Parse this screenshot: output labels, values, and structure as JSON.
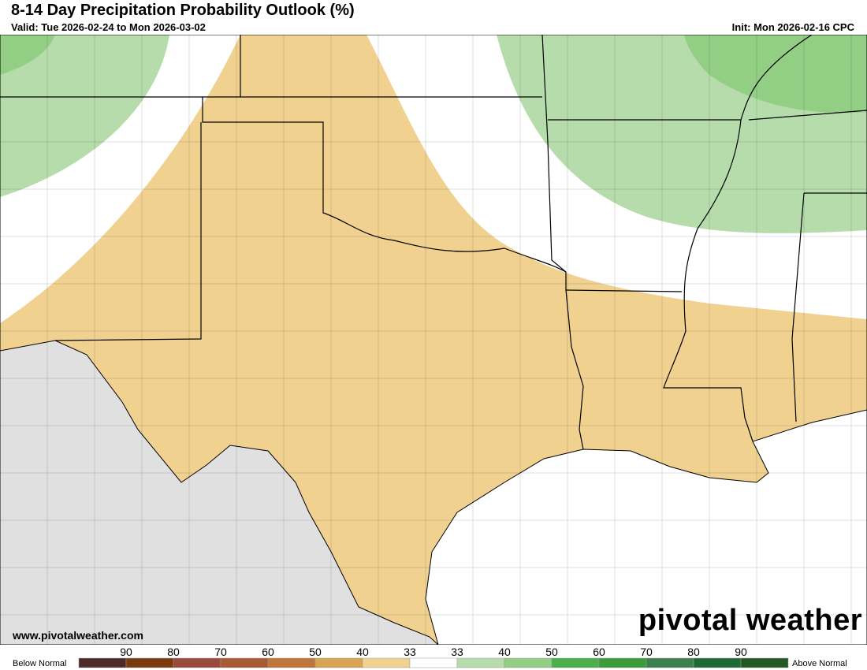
{
  "header": {
    "title": "8-14 Day Precipitation Probability Outlook (%)",
    "valid": "Valid: Tue 2026-02-24 to Mon 2026-03-02",
    "init": "Init: Mon 2026-02-16 CPC"
  },
  "footer": {
    "website": "www.pivotalweather.com",
    "logo": "pivotal weather"
  },
  "legend": {
    "below_label": "Below Normal",
    "above_label": "Above Normal",
    "colors": [
      "#4f2a2a",
      "#7a3a10",
      "#9a4a3a",
      "#a85a32",
      "#c0763a",
      "#d8a451",
      "#f0d190",
      "#ffffff",
      "#b5dcaa",
      "#92ce84",
      "#4cb04a",
      "#3c9c3a",
      "#3c8050",
      "#1e6a36",
      "#245a22"
    ],
    "ticks": [
      "90",
      "80",
      "70",
      "60",
      "50",
      "40",
      "33",
      "33",
      "40",
      "50",
      "60",
      "70",
      "80",
      "90"
    ]
  }
}
